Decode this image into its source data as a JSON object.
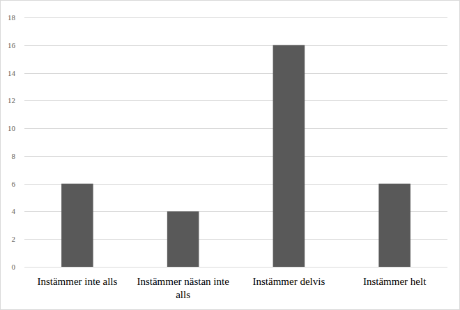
{
  "chart_data": {
    "type": "bar",
    "categories": [
      "Instämmer inte alls",
      "Instämmer nästan inte alls",
      "Instämmer delvis",
      "Instämmer helt"
    ],
    "values": [
      6,
      4,
      16,
      6
    ],
    "color": "#595959",
    "ylim": [
      0,
      18
    ],
    "yticks": [
      0,
      2,
      4,
      6,
      8,
      10,
      12,
      14,
      16,
      18
    ],
    "grid": true
  }
}
